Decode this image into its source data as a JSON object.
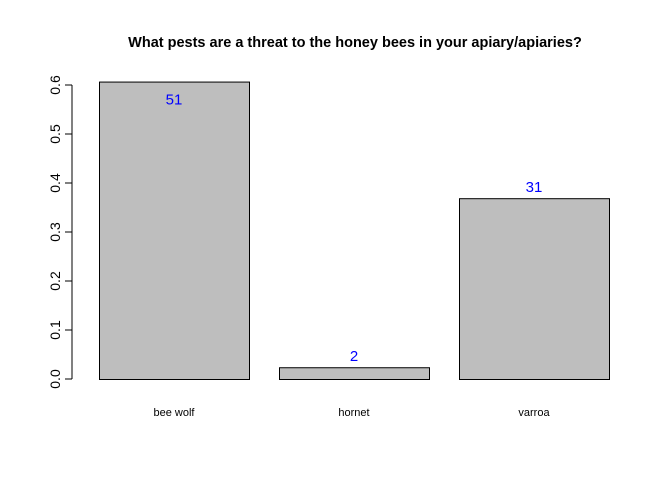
{
  "chart_data": {
    "type": "bar",
    "title": "What pests are a threat to the honey bees in your apiary/apiaries?",
    "xlabel": "",
    "ylabel": "",
    "categories": [
      "bee wolf",
      "hornet",
      "varroa"
    ],
    "values": [
      0.607,
      0.024,
      0.369
    ],
    "data_labels": [
      "51",
      "2",
      "31"
    ],
    "ylim": [
      0,
      0.6
    ],
    "yticks": [
      0.0,
      0.1,
      0.2,
      0.3,
      0.4,
      0.5,
      0.6
    ],
    "ytick_labels": [
      "0.0",
      "0.1",
      "0.2",
      "0.3",
      "0.4",
      "0.5",
      "0.6"
    ],
    "grid": false,
    "legend": "none",
    "colors": {
      "bar_fill": "#bebebe",
      "bar_border": "#000000",
      "data_label": "#0000ff",
      "axis": "#000000",
      "background": "#ffffff"
    }
  }
}
